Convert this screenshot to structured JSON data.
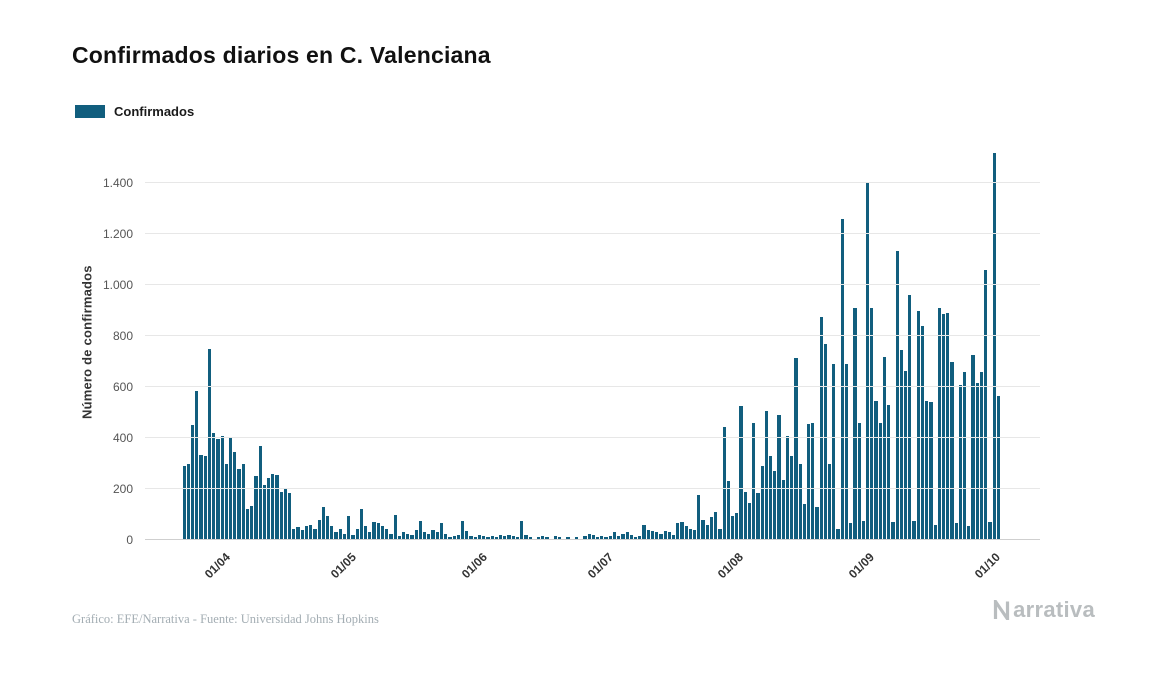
{
  "title": "Confirmados diarios en C. Valenciana",
  "legend": {
    "label": "Confirmados"
  },
  "y_axis_title": "Número de confirmados",
  "footer": {
    "credit": "Gráfico: EFE/Narrativa - Fuente: Universidad Johns Hopkins"
  },
  "branding": {
    "name": "Narrativa",
    "suffix": "arrativa"
  },
  "colors": {
    "bar": "#115e7e",
    "grid": "#e7e7e7",
    "zero_line": "#cfcfcf",
    "title": "#111111",
    "footer_text": "#a3adb3",
    "brand": "#b9bdbf"
  },
  "chart_data": {
    "type": "bar",
    "title": "Confirmados diarios en C. Valenciana",
    "xlabel": "",
    "ylabel": "Número de confirmados",
    "series_name": "Confirmados",
    "grid": true,
    "legend_position": "top-left",
    "ylim": [
      0,
      1550
    ],
    "y_ticks": [
      0,
      200,
      400,
      600,
      800,
      1000,
      1200,
      1400
    ],
    "y_tick_labels": [
      "0",
      "200",
      "400",
      "600",
      "800",
      "1.000",
      "1.200",
      "1.400"
    ],
    "x_tick_labels": [
      "01/04",
      "01/05",
      "01/06",
      "01/07",
      "01/08",
      "01/09",
      "01/10"
    ],
    "x_tick_indices": [
      9,
      39,
      70,
      100,
      131,
      162,
      192
    ],
    "values": [
      290,
      300,
      450,
      585,
      335,
      330,
      750,
      420,
      395,
      410,
      300,
      405,
      345,
      280,
      300,
      120,
      135,
      250,
      370,
      215,
      245,
      260,
      255,
      190,
      200,
      185,
      45,
      50,
      40,
      55,
      60,
      45,
      80,
      130,
      95,
      55,
      30,
      45,
      25,
      95,
      20,
      45,
      120,
      55,
      30,
      70,
      65,
      55,
      45,
      25,
      100,
      15,
      30,
      25,
      20,
      40,
      75,
      30,
      25,
      40,
      30,
      65,
      25,
      10,
      15,
      20,
      75,
      35,
      15,
      10,
      20,
      15,
      10,
      15,
      10,
      20,
      15,
      20,
      15,
      10,
      75,
      20,
      10,
      5,
      10,
      15,
      10,
      5,
      15,
      10,
      5,
      10,
      5,
      10,
      5,
      15,
      25,
      20,
      10,
      15,
      10,
      15,
      30,
      15,
      25,
      30,
      20,
      10,
      15,
      60,
      40,
      35,
      30,
      25,
      35,
      30,
      20,
      65,
      70,
      55,
      45,
      40,
      175,
      80,
      60,
      90,
      110,
      45,
      445,
      230,
      95,
      105,
      525,
      190,
      145,
      460,
      185,
      290,
      505,
      330,
      270,
      490,
      235,
      410,
      330,
      715,
      300,
      140,
      455,
      460,
      130,
      875,
      770,
      300,
      690,
      45,
      1260,
      690,
      65,
      910,
      460,
      75,
      1400,
      910,
      545,
      460,
      720,
      530,
      70,
      1135,
      745,
      665,
      960,
      75,
      900,
      840,
      545,
      540,
      60,
      910,
      885,
      890,
      700,
      65,
      610,
      660,
      55,
      725,
      615,
      660,
      1060,
      70,
      1520,
      565
    ]
  }
}
